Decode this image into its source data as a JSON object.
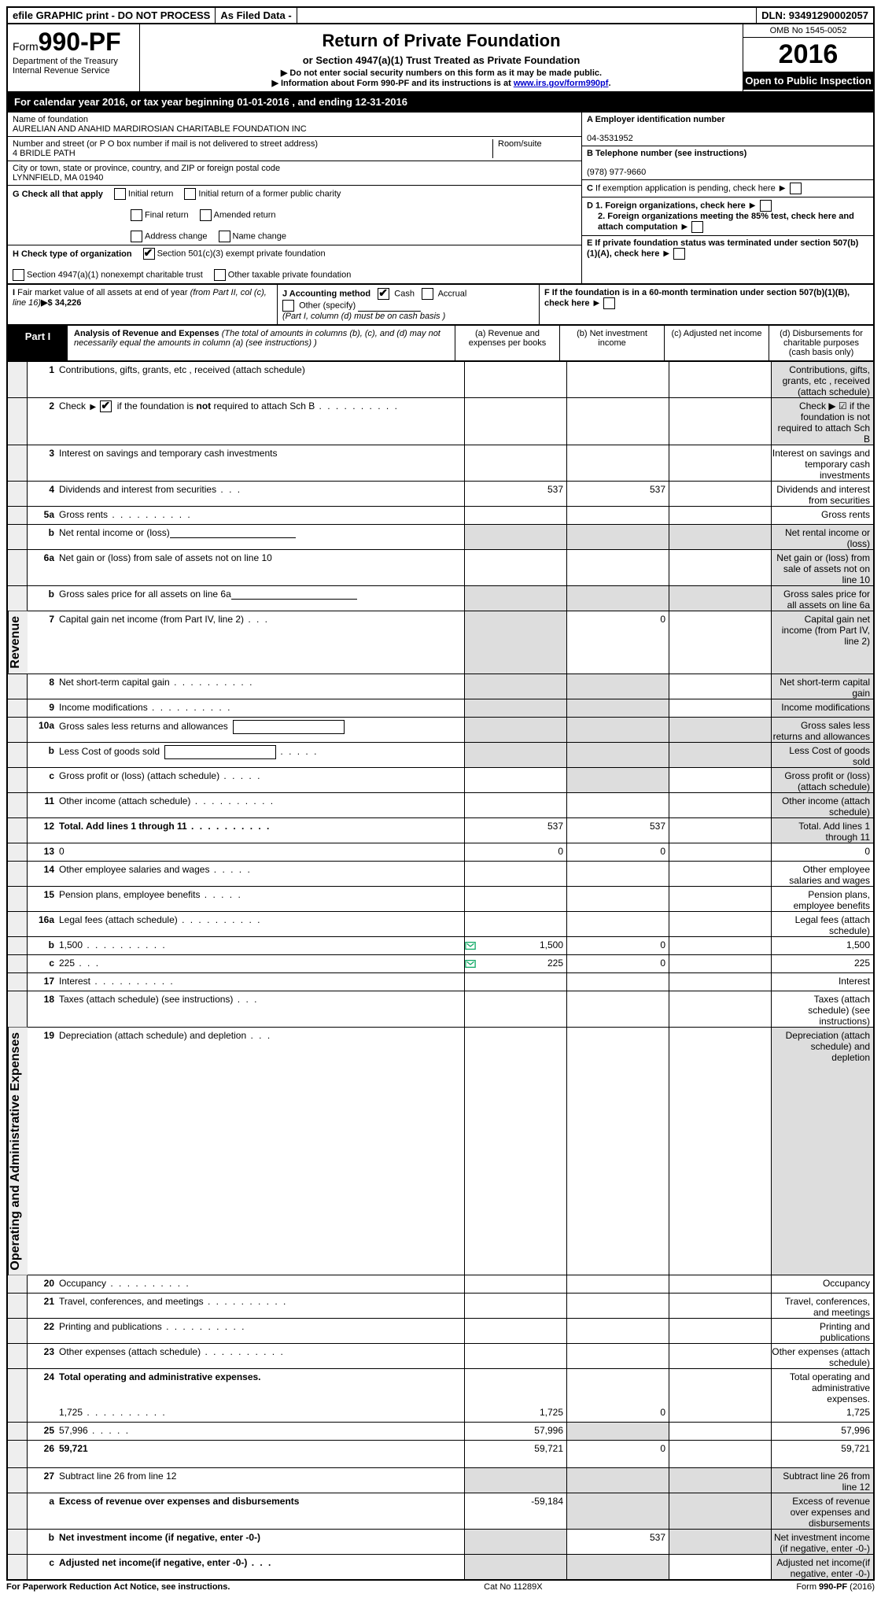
{
  "topbar": {
    "efile": "efile GRAPHIC print - DO NOT PROCESS",
    "asfiled": "As Filed Data -",
    "dln": "DLN: 93491290002057"
  },
  "header": {
    "form_prefix": "Form",
    "form_no": "990-PF",
    "dept": "Department of the Treasury",
    "irs": "Internal Revenue Service",
    "title": "Return of Private Foundation",
    "sub": "or Section 4947(a)(1) Trust Treated as Private Foundation",
    "note1": "▶ Do not enter social security numbers on this form as it may be made public.",
    "note2_prefix": "▶ Information about Form 990-PF and its instructions is at ",
    "note2_link": "www.irs.gov/form990pf",
    "omb": "OMB No 1545-0052",
    "year": "2016",
    "open": "Open to Public Inspection"
  },
  "cal_year": "For calendar year 2016, or tax year beginning 01-01-2016          , and ending 12-31-2016",
  "org": {
    "name_label": "Name of foundation",
    "name": "AURELIAN AND ANAHID MARDIROSIAN CHARITABLE FOUNDATION INC",
    "addr_label": "Number and street (or P O  box number if mail is not delivered to street address)",
    "addr": "4 BRIDLE PATH",
    "room_label": "Room/suite",
    "city_label": "City or town, state or province, country, and ZIP or foreign postal code",
    "city": "LYNNFIELD, MA  01940"
  },
  "right": {
    "A_label": "A Employer identification number",
    "A_val": "04-3531952",
    "B_label": "B Telephone number (see instructions)",
    "B_val": "(978) 977-9660",
    "C_label": "C If exemption application is pending, check here",
    "D1": "D 1. Foreign organizations, check here",
    "D2": "2. Foreign organizations meeting the 85% test, check here and attach computation",
    "E": "E  If private foundation status was terminated under section 507(b)(1)(A), check here",
    "F": "F  If the foundation is in a 60-month termination under section 507(b)(1)(B), check here"
  },
  "G": {
    "label": "G Check all that apply",
    "opts": [
      "Initial return",
      "Initial return of a former public charity",
      "Final return",
      "Amended return",
      "Address change",
      "Name change"
    ]
  },
  "H": {
    "label": "H Check type of organization",
    "o1": "Section 501(c)(3) exempt private foundation",
    "o2": "Section 4947(a)(1) nonexempt charitable trust",
    "o3": "Other taxable private foundation"
  },
  "I": {
    "label": "I Fair market value of all assets at end of year (from Part II, col  (c), line 16)▶$  34,226"
  },
  "J": {
    "label": "J Accounting method",
    "o1": "Cash",
    "o2": "Accrual",
    "o3": "Other (specify)",
    "note": "(Part I, column (d) must be on cash basis )"
  },
  "part1": {
    "label": "Part I",
    "title": "Analysis of Revenue and Expenses",
    "paren": "(The total of amounts in columns (b), (c), and (d) may not necessarily equal the amounts in column (a) (see instructions) )",
    "cols": {
      "a": "(a)   Revenue and expenses per books",
      "b": "(b)  Net investment income",
      "c": "(c)  Adjusted net income",
      "d": "(d)  Disbursements for charitable purposes (cash basis only)"
    }
  },
  "vlabels": {
    "rev": "Revenue",
    "exp": "Operating and Administrative Expenses"
  },
  "rows": [
    {
      "n": "1",
      "d": "Contributions, gifts, grants, etc , received (attach schedule)",
      "tall": true,
      "shade_d": true
    },
    {
      "n": "2",
      "d": "Check ▶ ☑ if the foundation is not required to attach Sch B",
      "dots": true,
      "tall": true,
      "shade_d": true,
      "html": true,
      "d_html": "Check <span class='arrow'></span> <span class='checkbox checked'></span> if the foundation is <b>not</b> required to attach Sch  B"
    },
    {
      "n": "3",
      "d": "Interest on savings and temporary cash investments"
    },
    {
      "n": "4",
      "d": "Dividends and interest from securities",
      "dots_sm": true,
      "a": "537",
      "b": "537"
    },
    {
      "n": "5a",
      "d": "Gross rents",
      "dots": true
    },
    {
      "n": "b",
      "d": "Net rental income or (loss)",
      "inline_line": true,
      "shade_bcd": true,
      "shade_a": true
    },
    {
      "n": "6a",
      "d": "Net gain or (loss) from sale of assets not on line 10",
      "shade_d": true
    },
    {
      "n": "b",
      "d": "Gross sales price for all assets on line 6a",
      "inline_line": true,
      "shade_abcd": true
    },
    {
      "n": "7",
      "d": "Capital gain net income (from Part IV, line 2)",
      "dots_sm": true,
      "b": "0",
      "shade_a": true,
      "shade_d": true
    },
    {
      "n": "8",
      "d": "Net short-term capital gain",
      "dots": true,
      "shade_a": true,
      "shade_b": true,
      "shade_d": true
    },
    {
      "n": "9",
      "d": "Income modifications",
      "dots": true,
      "shade_a": true,
      "shade_b": true,
      "shade_d": true
    },
    {
      "n": "10a",
      "d": "Gross sales less returns and allowances",
      "inset": true,
      "shade_abcd": true
    },
    {
      "n": "b",
      "d": "Less  Cost of goods sold",
      "dots_s": true,
      "inset": true,
      "shade_abcd": true
    },
    {
      "n": "c",
      "d": "Gross profit or (loss) (attach schedule)",
      "dots_s": true,
      "shade_b": true,
      "shade_d": true
    },
    {
      "n": "11",
      "d": "Other income (attach schedule)",
      "dots": true,
      "shade_d": true
    },
    {
      "n": "12",
      "d": "Total. Add lines 1 through 11",
      "dots": true,
      "bold": true,
      "a": "537",
      "b": "537",
      "shade_d": true
    }
  ],
  "exp_rows": [
    {
      "n": "13",
      "d": "0",
      "a": "0",
      "b": "0"
    },
    {
      "n": "14",
      "d": "Other employee salaries and wages",
      "dots_s": true
    },
    {
      "n": "15",
      "d": "Pension plans, employee benefits",
      "dots_s": true
    },
    {
      "n": "16a",
      "d": "Legal fees (attach schedule)",
      "dots": true
    },
    {
      "n": "b",
      "d": "1,500",
      "dots": true,
      "icon": true,
      "a": "1,500",
      "b": "0"
    },
    {
      "n": "c",
      "d": "225",
      "dots_sm": true,
      "icon": true,
      "a": "225",
      "b": "0"
    },
    {
      "n": "17",
      "d": "Interest",
      "dots": true
    },
    {
      "n": "18",
      "d": "Taxes (attach schedule) (see instructions)",
      "dots_sm": true
    },
    {
      "n": "19",
      "d": "Depreciation (attach schedule) and depletion",
      "dots_sm": true,
      "shade_d": true
    },
    {
      "n": "20",
      "d": "Occupancy",
      "dots": true
    },
    {
      "n": "21",
      "d": "Travel, conferences, and meetings",
      "dots": true
    },
    {
      "n": "22",
      "d": "Printing and publications",
      "dots": true
    },
    {
      "n": "23",
      "d": "Other expenses (attach schedule)",
      "dots": true
    },
    {
      "n": "24",
      "d": "Total operating and administrative expenses.",
      "bold": true,
      "tall": true,
      "no_border": true
    },
    {
      "n": "",
      "d": "1,725",
      "dots": true,
      "a": "1,725",
      "b": "0"
    },
    {
      "n": "25",
      "d": "57,996",
      "dots_s": true,
      "a": "57,996",
      "shade_b": true
    },
    {
      "n": "26",
      "d": "59,721",
      "bold": true,
      "tall": true,
      "a": "59,721",
      "b": "0"
    }
  ],
  "net_rows": [
    {
      "n": "27",
      "d": "Subtract line 26 from line 12",
      "shade_abcd": true
    },
    {
      "n": "a",
      "d": "Excess of revenue over expenses and disbursements",
      "bold": true,
      "a": "-59,184",
      "shade_bcd": true,
      "tall": true
    },
    {
      "n": "b",
      "d": "Net investment income (if negative, enter -0-)",
      "bold": true,
      "b": "537",
      "shade_a": true,
      "shade_cd": true
    },
    {
      "n": "c",
      "d": "Adjusted net income(if negative, enter -0-)",
      "bold": true,
      "dots_sm": true,
      "shade_a": true,
      "shade_b": true,
      "shade_d": true
    }
  ],
  "footer": {
    "left": "For Paperwork Reduction Act Notice, see instructions.",
    "mid": "Cat  No  11289X",
    "right": "Form 990-PF (2016)"
  }
}
